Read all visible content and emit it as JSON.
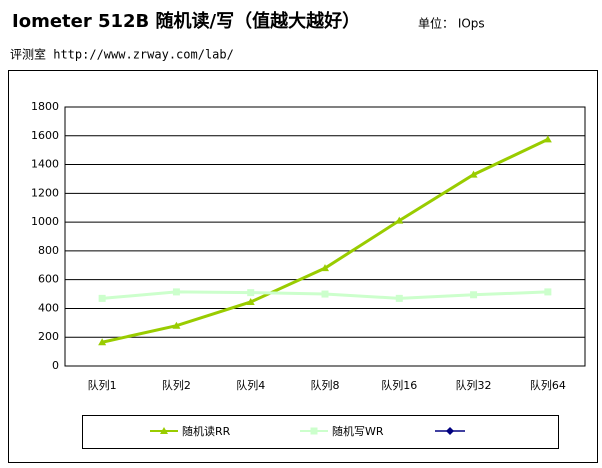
{
  "header": {
    "title": "Iometer 512B 随机读/写（值越大越好）",
    "unit": "单位： IOps",
    "source": "评测室 http://www.zrway.com/lab/"
  },
  "chart_data": {
    "type": "line",
    "categories": [
      "队列1",
      "队列2",
      "队列4",
      "队列8",
      "队列16",
      "队列32",
      "队列64"
    ],
    "series": [
      {
        "name": "随机读RR",
        "color": "#99cc00",
        "marker": "triangle",
        "values": [
          165,
          280,
          445,
          680,
          1010,
          1330,
          1575
        ]
      },
      {
        "name": "随机写WR",
        "color": "#ccffcc",
        "marker": "square",
        "values": [
          470,
          515,
          510,
          500,
          470,
          495,
          515
        ]
      }
    ],
    "ylim": [
      0,
      1800
    ],
    "yticks": [
      0,
      200,
      400,
      600,
      800,
      1000,
      1200,
      1400,
      1600,
      1800
    ],
    "grid": true
  }
}
